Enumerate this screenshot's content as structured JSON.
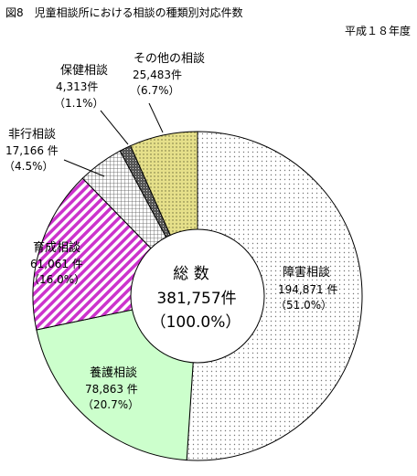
{
  "figure": {
    "title": "図8　児童相談所における相談の種類別対応件数",
    "year_note": "平成１８年度"
  },
  "chart_data": {
    "type": "pie",
    "style": "donut",
    "total": {
      "label": "総 数",
      "value": "381,757件",
      "percent": "（100.0%）"
    },
    "slices": [
      {
        "name": "障害相談",
        "value": 194871,
        "count_label": "194,871 件",
        "pct_label": "（51.0%）",
        "fill": "dots",
        "color": "#ffffff"
      },
      {
        "name": "養護相談",
        "value": 78863,
        "count_label": "78,863 件",
        "pct_label": "（20.7%）",
        "fill": "solid",
        "color": "#ccffcc"
      },
      {
        "name": "育成相談",
        "value": 61061,
        "count_label": "61,061 件",
        "pct_label": "（16.0%）",
        "fill": "diagonal-stripes",
        "color": "#cc33cc"
      },
      {
        "name": "非行相談",
        "value": 17166,
        "count_label": "17,166 件",
        "pct_label": "（4.5%）",
        "fill": "grid",
        "color": "#ffffff"
      },
      {
        "name": "保健相談",
        "value": 4313,
        "count_label": "4,313件",
        "pct_label": "（1.1%）",
        "fill": "crosshatch",
        "color": "#555555"
      },
      {
        "name": "その他の相談",
        "value": 25483,
        "count_label": "25,483件",
        "pct_label": "（6.7%）",
        "fill": "dots",
        "color": "#e6e08a"
      }
    ]
  }
}
